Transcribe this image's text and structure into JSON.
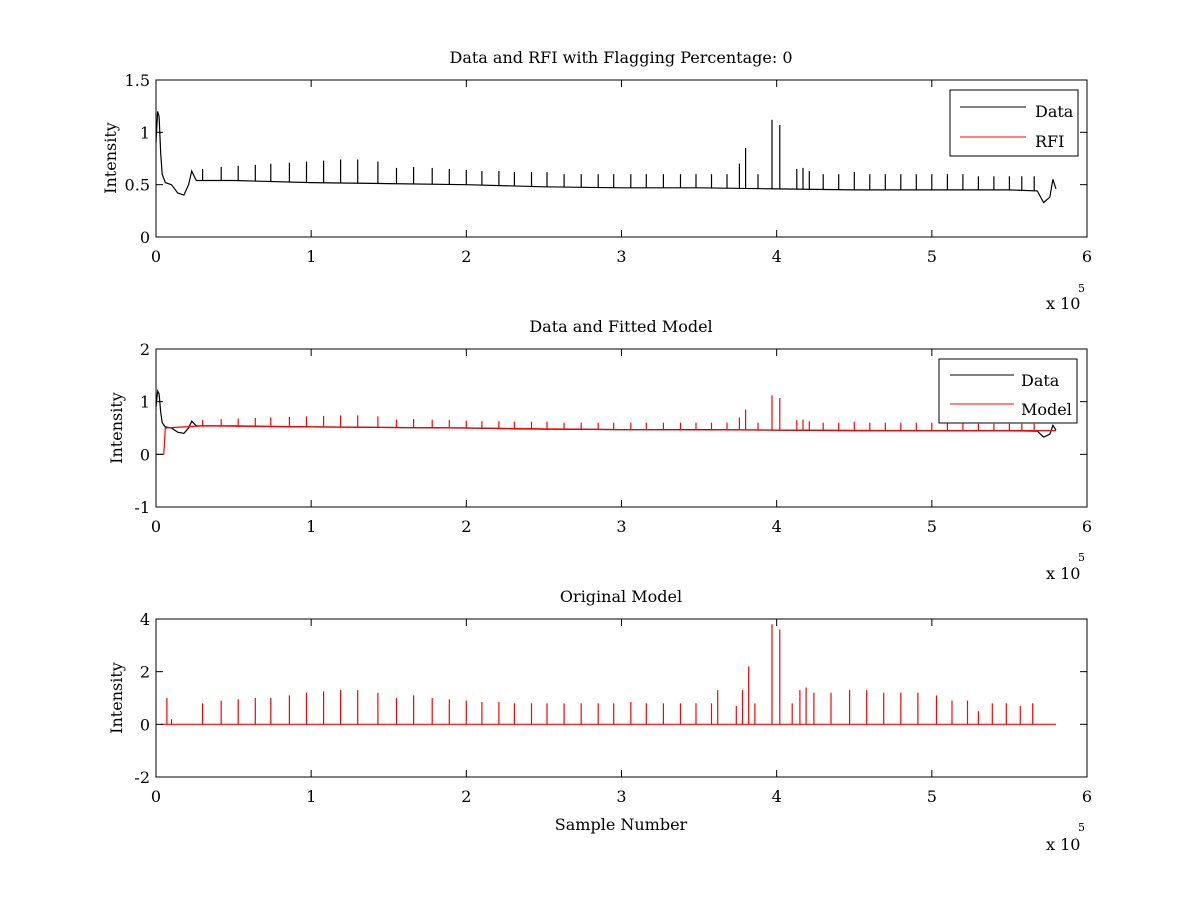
{
  "chart_data": [
    {
      "type": "line",
      "title": "Data and RFI with Flagging Percentage: 0",
      "xlabel": "",
      "ylabel": "Intensity",
      "xlim": [
        0,
        6
      ],
      "ylim": [
        0,
        1.5
      ],
      "x_ticks": [
        "0",
        "1",
        "2",
        "3",
        "4",
        "5",
        "6"
      ],
      "y_ticks": [
        "0",
        "0.5",
        "1",
        "1.5"
      ],
      "x_exponent": {
        "base": "x 10",
        "power": "5"
      },
      "legend": {
        "position": "top-right",
        "entries": [
          "Data",
          "RFI"
        ]
      },
      "series": [
        {
          "name": "Data",
          "color": "#000000",
          "points": [
            [
              0,
              0.9
            ],
            [
              0.01,
              1.2
            ],
            [
              0.02,
              1.15
            ],
            [
              0.03,
              0.8
            ],
            [
              0.04,
              0.6
            ],
            [
              0.06,
              0.52
            ],
            [
              0.1,
              0.5
            ],
            [
              0.14,
              0.42
            ],
            [
              0.18,
              0.4
            ],
            [
              0.21,
              0.5
            ],
            [
              0.23,
              0.63
            ],
            [
              0.26,
              0.54
            ],
            [
              0.5,
              0.54
            ],
            [
              1.0,
              0.52
            ],
            [
              1.5,
              0.51
            ],
            [
              2.0,
              0.5
            ],
            [
              2.5,
              0.48
            ],
            [
              3.0,
              0.47
            ],
            [
              3.5,
              0.47
            ],
            [
              4.0,
              0.46
            ],
            [
              4.5,
              0.45
            ],
            [
              5.0,
              0.45
            ],
            [
              5.5,
              0.45
            ],
            [
              5.68,
              0.44
            ],
            [
              5.72,
              0.33
            ],
            [
              5.76,
              0.38
            ],
            [
              5.78,
              0.55
            ],
            [
              5.8,
              0.46
            ]
          ],
          "spikes": [
            [
              0.3,
              0.65
            ],
            [
              0.42,
              0.67
            ],
            [
              0.53,
              0.68
            ],
            [
              0.64,
              0.69
            ],
            [
              0.74,
              0.7
            ],
            [
              0.86,
              0.71
            ],
            [
              0.97,
              0.72
            ],
            [
              1.08,
              0.73
            ],
            [
              1.19,
              0.74
            ],
            [
              1.3,
              0.74
            ],
            [
              1.43,
              0.72
            ],
            [
              1.55,
              0.66
            ],
            [
              1.66,
              0.67
            ],
            [
              1.78,
              0.66
            ],
            [
              1.89,
              0.65
            ],
            [
              2.0,
              0.64
            ],
            [
              2.1,
              0.63
            ],
            [
              2.21,
              0.63
            ],
            [
              2.31,
              0.62
            ],
            [
              2.42,
              0.62
            ],
            [
              2.52,
              0.62
            ],
            [
              2.63,
              0.6
            ],
            [
              2.74,
              0.6
            ],
            [
              2.85,
              0.6
            ],
            [
              2.95,
              0.6
            ],
            [
              3.06,
              0.6
            ],
            [
              3.16,
              0.6
            ],
            [
              3.27,
              0.6
            ],
            [
              3.38,
              0.6
            ],
            [
              3.48,
              0.6
            ],
            [
              3.58,
              0.6
            ],
            [
              3.68,
              0.6
            ],
            [
              3.76,
              0.7
            ],
            [
              3.8,
              0.85
            ],
            [
              3.88,
              0.6
            ],
            [
              3.97,
              1.12
            ],
            [
              4.02,
              1.07
            ],
            [
              4.13,
              0.65
            ],
            [
              4.17,
              0.66
            ],
            [
              4.21,
              0.63
            ],
            [
              4.3,
              0.6
            ],
            [
              4.4,
              0.6
            ],
            [
              4.5,
              0.62
            ],
            [
              4.6,
              0.6
            ],
            [
              4.7,
              0.6
            ],
            [
              4.8,
              0.6
            ],
            [
              4.9,
              0.6
            ],
            [
              5.0,
              0.6
            ],
            [
              5.1,
              0.6
            ],
            [
              5.2,
              0.6
            ],
            [
              5.3,
              0.58
            ],
            [
              5.4,
              0.58
            ],
            [
              5.5,
              0.58
            ],
            [
              5.58,
              0.58
            ],
            [
              5.66,
              0.58
            ]
          ]
        },
        {
          "name": "RFI",
          "color": "#ff0000",
          "points": []
        }
      ]
    },
    {
      "type": "line",
      "title": "Data and Fitted Model",
      "xlabel": "",
      "ylabel": "Intensity",
      "xlim": [
        0,
        6
      ],
      "ylim": [
        -1,
        2
      ],
      "x_ticks": [
        "0",
        "1",
        "2",
        "3",
        "4",
        "5",
        "6"
      ],
      "y_ticks": [
        "-1",
        "0",
        "1",
        "2"
      ],
      "x_exponent": {
        "base": "x 10",
        "power": "5"
      },
      "legend": {
        "position": "top-right",
        "entries": [
          "Data",
          "Model"
        ]
      },
      "series": [
        {
          "name": "Data",
          "color": "#000000",
          "points": [
            [
              0,
              0.9
            ],
            [
              0.01,
              1.2
            ],
            [
              0.02,
              1.15
            ],
            [
              0.03,
              0.8
            ],
            [
              0.04,
              0.6
            ],
            [
              0.06,
              0.52
            ],
            [
              0.1,
              0.5
            ],
            [
              0.14,
              0.42
            ],
            [
              0.18,
              0.4
            ],
            [
              0.21,
              0.5
            ],
            [
              0.23,
              0.63
            ],
            [
              0.26,
              0.54
            ],
            [
              0.5,
              0.54
            ],
            [
              1.0,
              0.52
            ],
            [
              1.5,
              0.51
            ],
            [
              2.0,
              0.5
            ],
            [
              2.5,
              0.48
            ],
            [
              3.0,
              0.47
            ],
            [
              3.5,
              0.47
            ],
            [
              4.0,
              0.46
            ],
            [
              4.5,
              0.45
            ],
            [
              5.0,
              0.45
            ],
            [
              5.5,
              0.45
            ],
            [
              5.68,
              0.44
            ],
            [
              5.72,
              0.33
            ],
            [
              5.76,
              0.38
            ],
            [
              5.78,
              0.55
            ],
            [
              5.8,
              0.46
            ]
          ],
          "spikes": []
        },
        {
          "name": "Model",
          "color": "#ff0000",
          "points": [
            [
              0,
              0.0
            ],
            [
              0.05,
              0.0
            ],
            [
              0.06,
              0.5
            ],
            [
              0.3,
              0.54
            ],
            [
              1.0,
              0.52
            ],
            [
              2.0,
              0.5
            ],
            [
              3.0,
              0.47
            ],
            [
              4.0,
              0.46
            ],
            [
              5.0,
              0.45
            ],
            [
              5.8,
              0.45
            ]
          ],
          "spikes": [
            [
              0.3,
              0.65
            ],
            [
              0.42,
              0.67
            ],
            [
              0.53,
              0.68
            ],
            [
              0.64,
              0.69
            ],
            [
              0.74,
              0.7
            ],
            [
              0.86,
              0.71
            ],
            [
              0.97,
              0.72
            ],
            [
              1.08,
              0.73
            ],
            [
              1.19,
              0.74
            ],
            [
              1.3,
              0.74
            ],
            [
              1.43,
              0.72
            ],
            [
              1.55,
              0.66
            ],
            [
              1.66,
              0.67
            ],
            [
              1.78,
              0.66
            ],
            [
              1.89,
              0.65
            ],
            [
              2.0,
              0.64
            ],
            [
              2.1,
              0.63
            ],
            [
              2.21,
              0.63
            ],
            [
              2.31,
              0.62
            ],
            [
              2.42,
              0.62
            ],
            [
              2.52,
              0.62
            ],
            [
              2.63,
              0.6
            ],
            [
              2.74,
              0.6
            ],
            [
              2.85,
              0.6
            ],
            [
              2.95,
              0.6
            ],
            [
              3.06,
              0.6
            ],
            [
              3.16,
              0.6
            ],
            [
              3.27,
              0.6
            ],
            [
              3.38,
              0.6
            ],
            [
              3.48,
              0.6
            ],
            [
              3.58,
              0.6
            ],
            [
              3.68,
              0.6
            ],
            [
              3.76,
              0.7
            ],
            [
              3.8,
              0.85
            ],
            [
              3.88,
              0.6
            ],
            [
              3.97,
              1.12
            ],
            [
              4.02,
              1.07
            ],
            [
              4.13,
              0.65
            ],
            [
              4.17,
              0.66
            ],
            [
              4.21,
              0.63
            ],
            [
              4.3,
              0.6
            ],
            [
              4.4,
              0.6
            ],
            [
              4.5,
              0.62
            ],
            [
              4.6,
              0.6
            ],
            [
              4.7,
              0.6
            ],
            [
              4.8,
              0.6
            ],
            [
              4.9,
              0.6
            ],
            [
              5.0,
              0.6
            ],
            [
              5.1,
              0.6
            ],
            [
              5.2,
              0.6
            ],
            [
              5.3,
              0.58
            ],
            [
              5.4,
              0.58
            ],
            [
              5.5,
              0.58
            ],
            [
              5.58,
              0.58
            ],
            [
              5.66,
              0.58
            ]
          ]
        }
      ]
    },
    {
      "type": "line",
      "title": "Original Model",
      "xlabel": "Sample Number",
      "ylabel": "Intensity",
      "xlim": [
        0,
        6
      ],
      "ylim": [
        -2,
        4
      ],
      "x_ticks": [
        "0",
        "1",
        "2",
        "3",
        "4",
        "5",
        "6"
      ],
      "y_ticks": [
        "-2",
        "0",
        "2",
        "4"
      ],
      "x_exponent": {
        "base": "x 10",
        "power": "5"
      },
      "legend": null,
      "series": [
        {
          "name": "",
          "color": "#ff0000",
          "points": [
            [
              0.03,
              0.0
            ],
            [
              5.8,
              0.0
            ]
          ],
          "spikes": [
            [
              0.07,
              1.0
            ],
            [
              0.1,
              0.2
            ],
            [
              0.3,
              0.8
            ],
            [
              0.42,
              0.9
            ],
            [
              0.53,
              0.95
            ],
            [
              0.64,
              1.0
            ],
            [
              0.74,
              1.0
            ],
            [
              0.86,
              1.1
            ],
            [
              0.97,
              1.2
            ],
            [
              1.08,
              1.25
            ],
            [
              1.19,
              1.3
            ],
            [
              1.3,
              1.3
            ],
            [
              1.43,
              1.2
            ],
            [
              1.55,
              1.0
            ],
            [
              1.66,
              1.1
            ],
            [
              1.78,
              1.0
            ],
            [
              1.89,
              0.95
            ],
            [
              2.0,
              0.9
            ],
            [
              2.1,
              0.85
            ],
            [
              2.21,
              0.85
            ],
            [
              2.31,
              0.8
            ],
            [
              2.42,
              0.8
            ],
            [
              2.52,
              0.8
            ],
            [
              2.63,
              0.8
            ],
            [
              2.74,
              0.8
            ],
            [
              2.85,
              0.8
            ],
            [
              2.95,
              0.8
            ],
            [
              3.06,
              0.85
            ],
            [
              3.16,
              0.8
            ],
            [
              3.27,
              0.8
            ],
            [
              3.38,
              0.8
            ],
            [
              3.48,
              0.8
            ],
            [
              3.58,
              0.8
            ],
            [
              3.62,
              1.3
            ],
            [
              3.74,
              0.7
            ],
            [
              3.78,
              1.3
            ],
            [
              3.82,
              2.2
            ],
            [
              3.86,
              0.8
            ],
            [
              3.97,
              3.8
            ],
            [
              4.02,
              3.6
            ],
            [
              4.1,
              0.8
            ],
            [
              4.15,
              1.3
            ],
            [
              4.19,
              1.4
            ],
            [
              4.24,
              1.2
            ],
            [
              4.35,
              1.2
            ],
            [
              4.47,
              1.3
            ],
            [
              4.58,
              1.3
            ],
            [
              4.69,
              1.2
            ],
            [
              4.8,
              1.2
            ],
            [
              4.91,
              1.2
            ],
            [
              5.03,
              1.1
            ],
            [
              5.13,
              0.9
            ],
            [
              5.23,
              0.9
            ],
            [
              5.3,
              0.5
            ],
            [
              5.39,
              0.8
            ],
            [
              5.48,
              0.8
            ],
            [
              5.57,
              0.7
            ],
            [
              5.65,
              0.8
            ]
          ]
        }
      ]
    }
  ]
}
